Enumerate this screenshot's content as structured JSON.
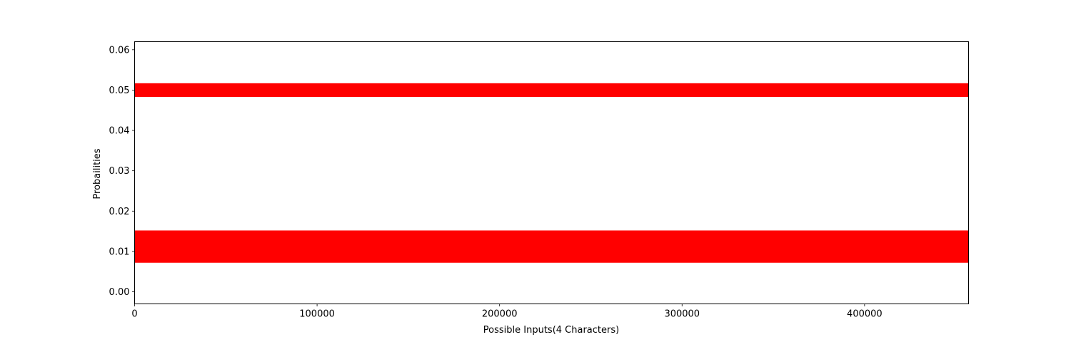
{
  "chart_data": {
    "type": "scatter",
    "title": "",
    "xlabel": "Possible Inputs(4 Characters)",
    "ylabel": "Probailities",
    "xlim": [
      0,
      456976
    ],
    "ylim": [
      -0.003,
      0.062
    ],
    "x_ticks": [
      0,
      100000,
      200000,
      300000,
      400000
    ],
    "x_tick_labels": [
      "0",
      "100000",
      "200000",
      "300000",
      "400000"
    ],
    "y_ticks": [
      0.0,
      0.01,
      0.02,
      0.03,
      0.04,
      0.05,
      0.06
    ],
    "y_tick_labels": [
      "0.00",
      "0.01",
      "0.02",
      "0.03",
      "0.04",
      "0.05",
      "0.06"
    ],
    "grid": false,
    "legend": "none",
    "color": "#ff0000",
    "bands": [
      {
        "x_range": [
          0,
          456976
        ],
        "y_range": [
          0.0072,
          0.0152
        ]
      },
      {
        "x_range": [
          0,
          456976
        ],
        "y_range": [
          0.0483,
          0.0517
        ]
      }
    ]
  }
}
